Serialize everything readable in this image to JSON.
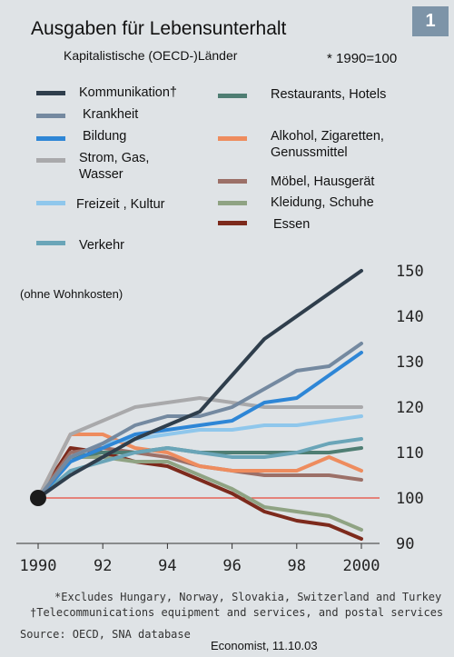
{
  "badge": "1",
  "footnote1": "*Excludes Hungary, Norway, Slovakia, Switzerland and Turkey",
  "footnote2": "†Telecommunications equipment and services, and postal services",
  "source": "Source: OECD, SNA database",
  "credit": "Economist, 11.10.03",
  "chart_data": {
    "type": "line",
    "title": "Ausgaben für Lebensunterhalt",
    "subtitle": "Kapitalistische (OECD-)Länder",
    "index_note": "* 1990=100",
    "annotation": "(ohne Wohnkosten)",
    "xlabel": "",
    "ylabel": "",
    "x": [
      1990,
      1991,
      1992,
      1993,
      1994,
      1995,
      1996,
      1997,
      1998,
      1999,
      2000
    ],
    "x_tick_labels": [
      "1990",
      "92",
      "94",
      "96",
      "98",
      "2000"
    ],
    "x_ticks": [
      1990,
      1992,
      1994,
      1996,
      1998,
      2000
    ],
    "ylim": [
      90,
      150
    ],
    "y_ticks": [
      90,
      100,
      110,
      120,
      130,
      140,
      150
    ],
    "reference_line": 100,
    "grid": false,
    "legend_position": "top",
    "series": [
      {
        "name": "Kommunikation†",
        "color": "#2f3e4c",
        "values": [
          100,
          105,
          109,
          113,
          116,
          119,
          127,
          135,
          140,
          145,
          150
        ]
      },
      {
        "name": "Krankheit",
        "color": "#7489a0",
        "values": [
          100,
          109,
          112,
          116,
          118,
          118,
          120,
          124,
          128,
          129,
          134
        ]
      },
      {
        "name": "Bildung",
        "color": "#2e86d6",
        "values": [
          100,
          108,
          111,
          114,
          115,
          116,
          117,
          121,
          122,
          127,
          132
        ]
      },
      {
        "name": "Strom, Gas, Wasser",
        "color": "#a9a9ab",
        "values": [
          100,
          114,
          117,
          120,
          121,
          122,
          121,
          120,
          120,
          120,
          120
        ]
      },
      {
        "name": "Freizeit , Kultur",
        "color": "#8fc7ec",
        "values": [
          100,
          109,
          112,
          113,
          114,
          115,
          115,
          116,
          116,
          117,
          118
        ]
      },
      {
        "name": "Verkehr",
        "color": "#6aa5b8",
        "values": [
          100,
          106,
          108,
          110,
          111,
          110,
          109,
          109,
          110,
          112,
          113
        ]
      },
      {
        "name": "Restaurants, Hotels",
        "color": "#4f7e73",
        "values": [
          100,
          109,
          110,
          110,
          111,
          110,
          110,
          110,
          110,
          110,
          111
        ]
      },
      {
        "name": "Alkohol, Zigaretten, Genussmittel",
        "color": "#ee8c5e",
        "values": [
          100,
          114,
          114,
          111,
          110,
          107,
          106,
          106,
          106,
          109,
          106
        ]
      },
      {
        "name": "Möbel, Hausgerät",
        "color": "#9c7068",
        "values": [
          100,
          110,
          111,
          110,
          109,
          107,
          106,
          105,
          105,
          105,
          104
        ]
      },
      {
        "name": "Kleidung, Schuhe",
        "color": "#8fa383",
        "values": [
          100,
          109,
          109,
          108,
          108,
          105,
          102,
          98,
          97,
          96,
          93
        ]
      },
      {
        "name": "Essen",
        "color": "#7d2a1c",
        "values": [
          100,
          111,
          110,
          108,
          107,
          104,
          101,
          97,
          95,
          94,
          91
        ]
      }
    ]
  }
}
